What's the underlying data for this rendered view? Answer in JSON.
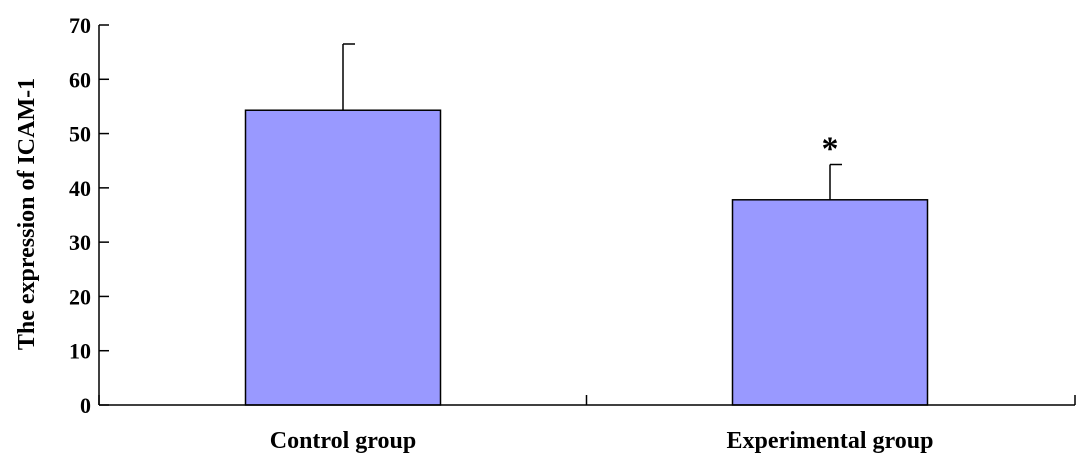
{
  "chart_data": {
    "type": "bar",
    "title": "",
    "xlabel": "",
    "ylabel": "The expression of ICAM-1",
    "categories": [
      "Control group",
      "Experimental group"
    ],
    "values": [
      54.3,
      37.8
    ],
    "error_upper": [
      12.2,
      6.5
    ],
    "annotations": [
      "",
      "*"
    ],
    "ylim": [
      0,
      70
    ],
    "yticks": [
      "0",
      "10",
      "20",
      "30",
      "40",
      "50",
      "60",
      "70"
    ],
    "grid": false,
    "bar_color": "#9999ff"
  }
}
